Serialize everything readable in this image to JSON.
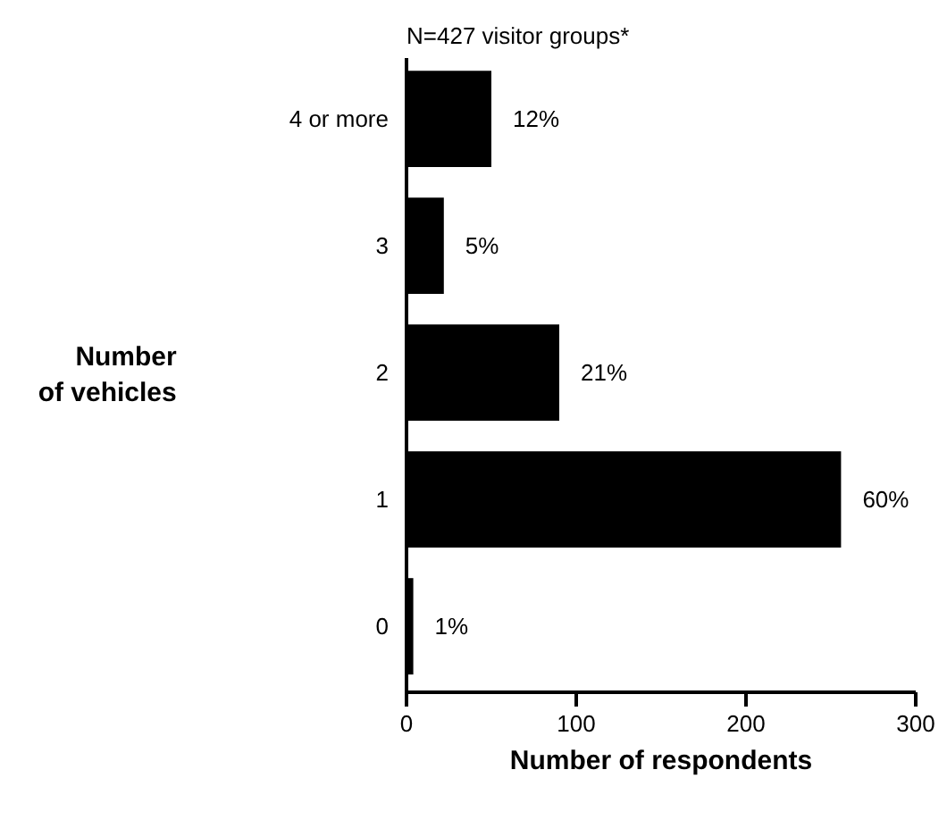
{
  "chart_data": {
    "type": "bar",
    "orientation": "horizontal",
    "title": "N=427 visitor groups*",
    "xlabel": "Number of respondents",
    "ylabel": "Number\nof vehicles",
    "categories": [
      "4 or more",
      "3",
      "2",
      "1",
      "0"
    ],
    "values": [
      50,
      22,
      90,
      256,
      4
    ],
    "annotations": [
      {
        "text": "12%",
        "x": 50,
        "y": "4 or more"
      },
      {
        "text": "5%",
        "x": 22,
        "y": "3"
      },
      {
        "text": "21%",
        "x": 90,
        "y": "2"
      },
      {
        "text": "60%",
        "x": 256,
        "y": "1"
      },
      {
        "text": "1%",
        "x": 4,
        "y": "0"
      }
    ],
    "color": "#000000",
    "xlim": [
      0,
      300
    ],
    "xticks": [
      0,
      100,
      200,
      300
    ]
  }
}
